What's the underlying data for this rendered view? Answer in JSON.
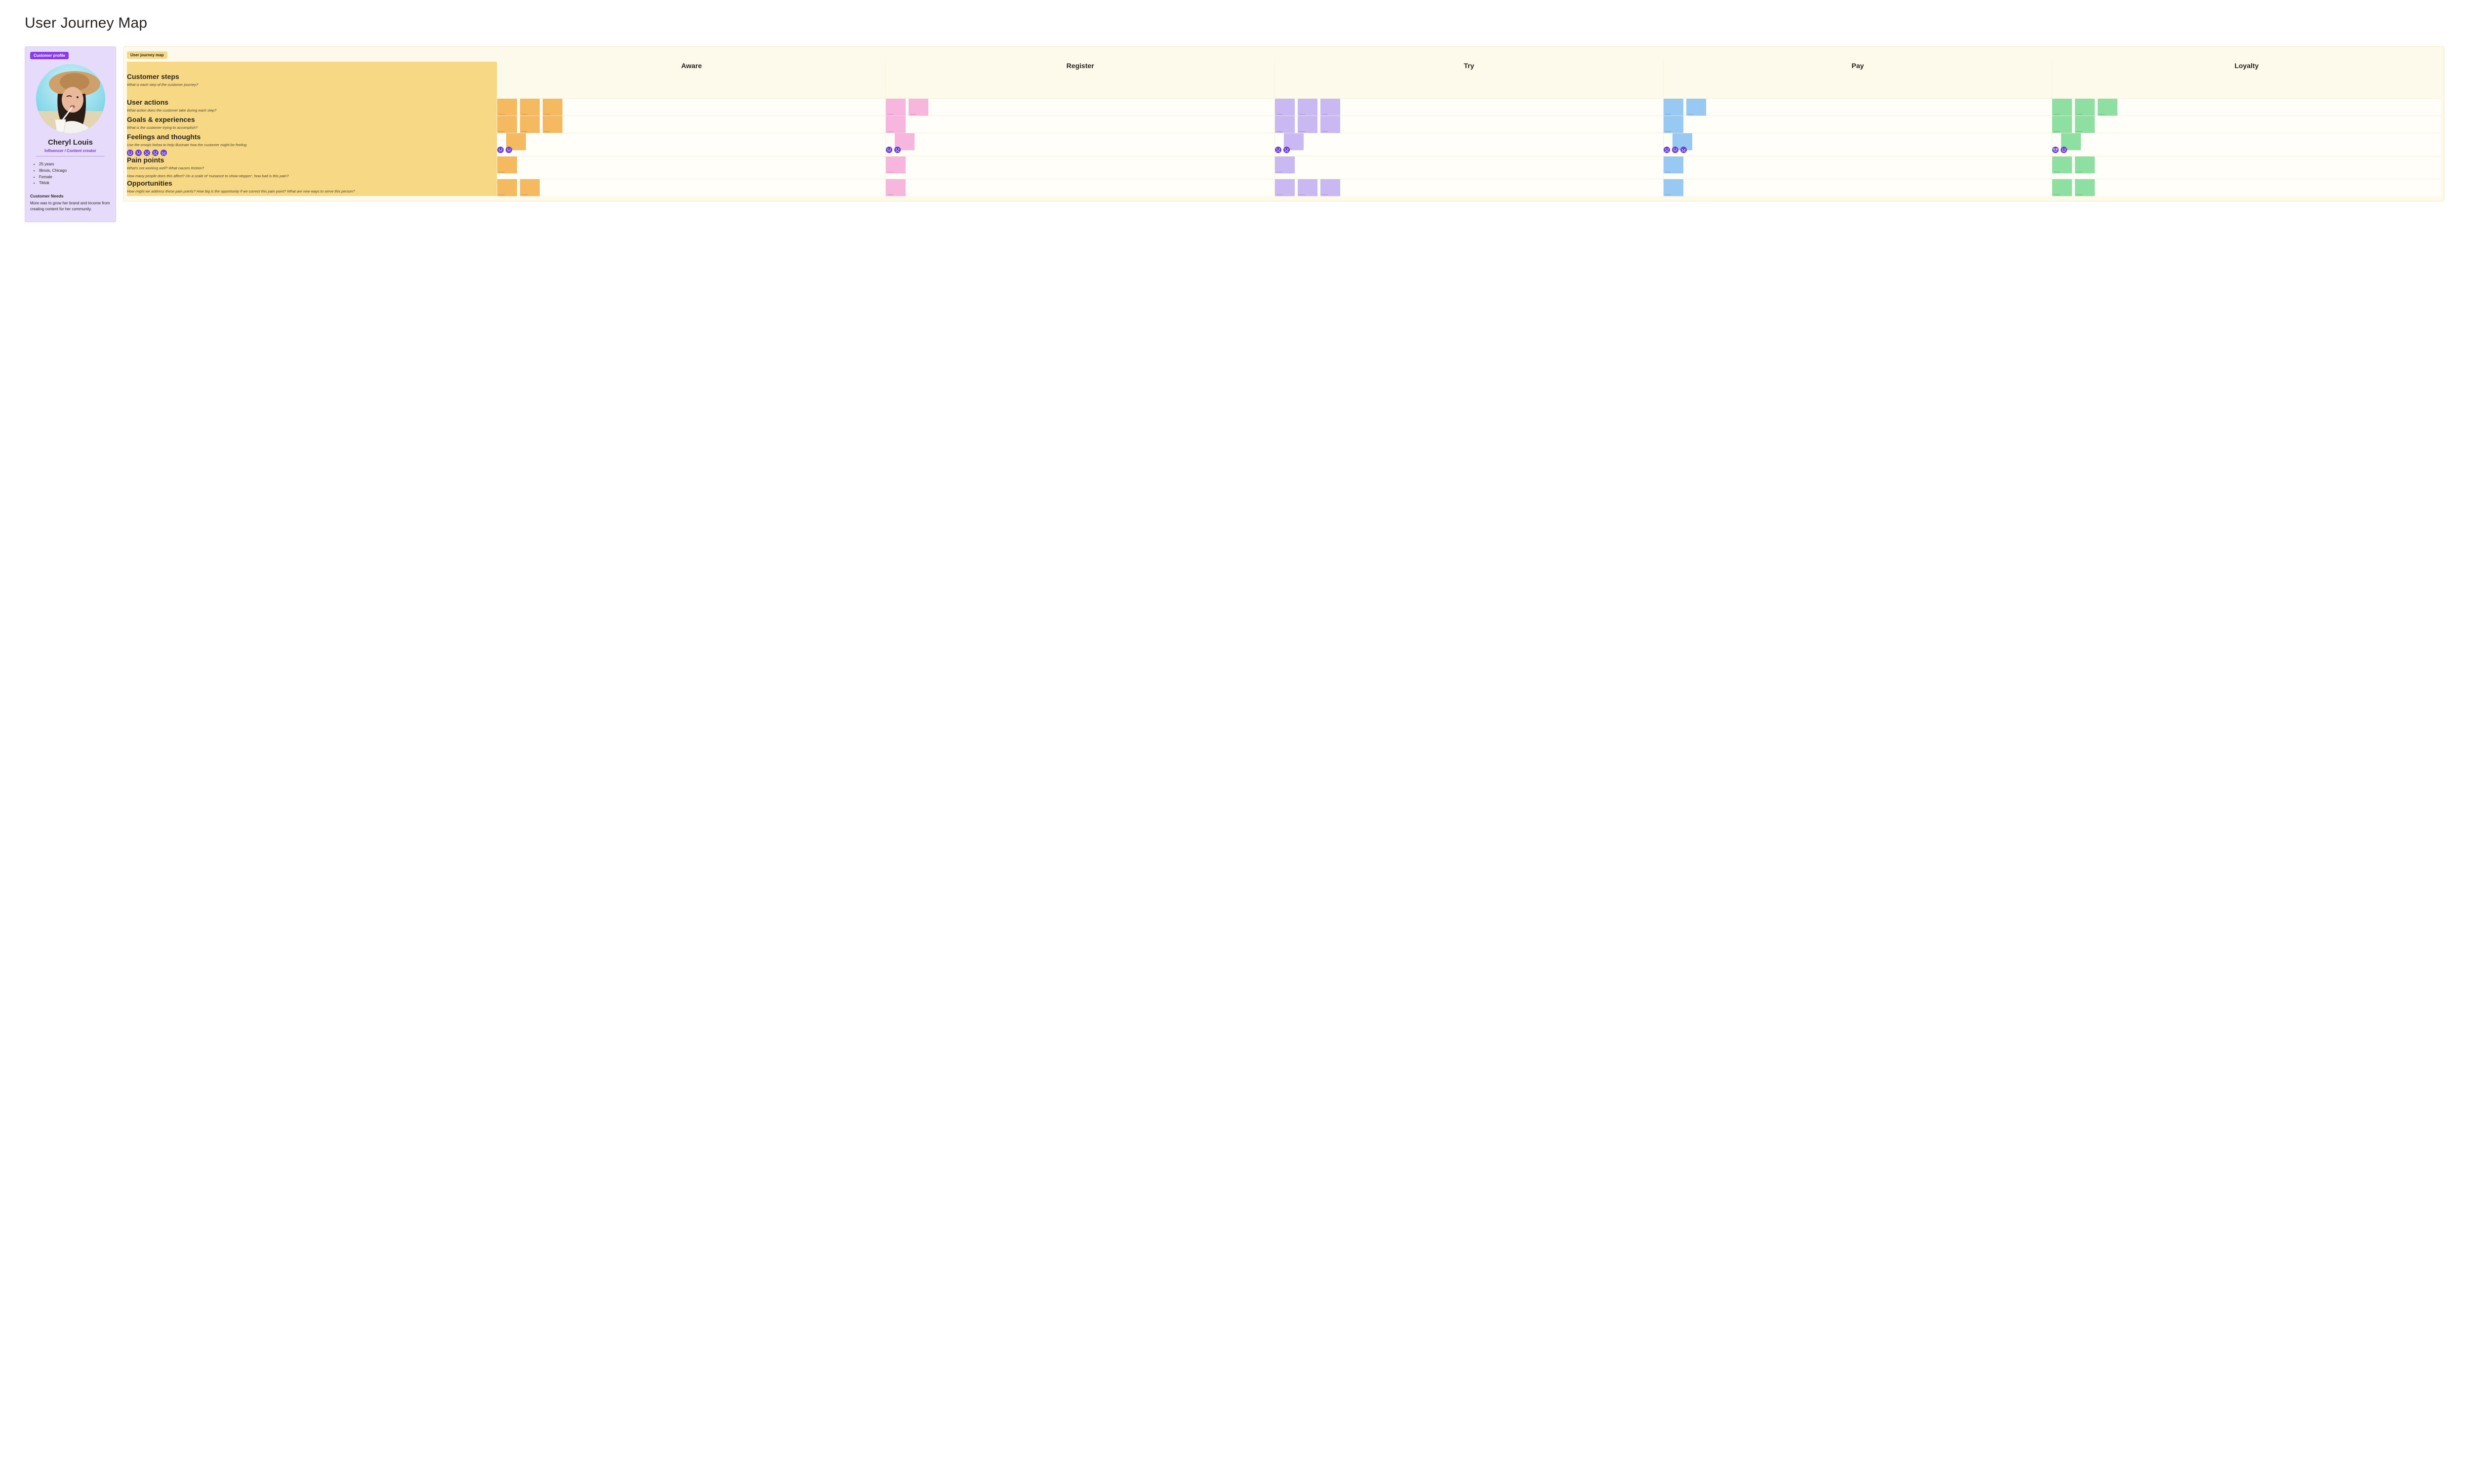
{
  "page": {
    "title": "User Journey Map"
  },
  "colors": {
    "page_bg": "#ffffff",
    "map_bg": "#fdfaeb",
    "label_col_bg": "#f7d985",
    "profile_bg": "#e6dbfb",
    "profile_tag_bg": "#8a3aef",
    "link_purple": "#7a30e0",
    "emoji": "#6b3fd9",
    "notes": {
      "orange": "#f5b95f",
      "pink": "#f7b6de",
      "purple": "#c9b8f2",
      "blue": "#97c9f3",
      "green": "#8de0a1"
    }
  },
  "profile": {
    "tag": "Customer profile",
    "name": "Cheryl Louis",
    "role": "Influencer / Content creator",
    "bullets": [
      "25 years",
      "Illinois, Chicago",
      "Female",
      "Tiktok"
    ],
    "needs_heading": "Customer Needs",
    "needs_body": "More was to grow her brand and income from creating content for her community."
  },
  "map": {
    "tag": "User journey map",
    "header": {
      "title": "Customer steps",
      "sub": "What is each step of the customer journey?"
    },
    "stages": [
      "Aware",
      "Register",
      "Try",
      "Pay",
      "Loyalty"
    ],
    "stage_colors": [
      "orange",
      "pink",
      "purple",
      "blue",
      "green"
    ],
    "rows": [
      {
        "id": "actions",
        "title": "User actions",
        "sub": [
          "What action does the customer take during each step?"
        ],
        "cells": [
          {
            "notes": 3
          },
          {
            "notes": 2
          },
          {
            "notes": 3
          },
          {
            "notes": 2
          },
          {
            "notes": 3
          }
        ]
      },
      {
        "id": "goals",
        "title": "Goals & experiences",
        "sub": [
          "What is the customer trying to accomplish?"
        ],
        "cells": [
          {
            "notes": 3
          },
          {
            "notes": 1
          },
          {
            "notes": 3
          },
          {
            "notes": 1
          },
          {
            "notes": 2
          }
        ]
      },
      {
        "id": "feelings",
        "title": "Feelings and thoughts",
        "sub": [
          "Use the emojis below to help illustrate how the customer might be feeling."
        ],
        "label_emojis": [
          "happy",
          "neutral",
          "sad",
          "sad",
          "angry"
        ],
        "cells": [
          {
            "notes": 1,
            "emojis": [
              "neutral",
              "neutral"
            ]
          },
          {
            "notes": 1,
            "emojis": [
              "neutral",
              "sad"
            ]
          },
          {
            "notes": 1,
            "emojis": [
              "sad",
              "sad"
            ]
          },
          {
            "notes": 1,
            "emojis": [
              "sad",
              "neutral",
              "angry"
            ]
          },
          {
            "notes": 1,
            "emojis": [
              "cool",
              "happy"
            ]
          }
        ]
      },
      {
        "id": "pain",
        "title": "Pain points",
        "sub": [
          "What's not working well? What causes friction?",
          "How many people does this affect? On a scale of 'nuisance to show-stopper', how bad is this pain?"
        ],
        "cells": [
          {
            "notes": 1
          },
          {
            "notes": 1
          },
          {
            "notes": 1
          },
          {
            "notes": 1
          },
          {
            "notes": 2
          }
        ]
      },
      {
        "id": "opps",
        "title": "Opportunities",
        "sub": [
          "How might we address these pain points? How big is the opportunity if we correct this pain point? What are new ways to serve this person?"
        ],
        "cells": [
          {
            "notes": 2
          },
          {
            "notes": 1
          },
          {
            "notes": 3
          },
          {
            "notes": 1
          },
          {
            "notes": 2
          }
        ]
      }
    ]
  }
}
